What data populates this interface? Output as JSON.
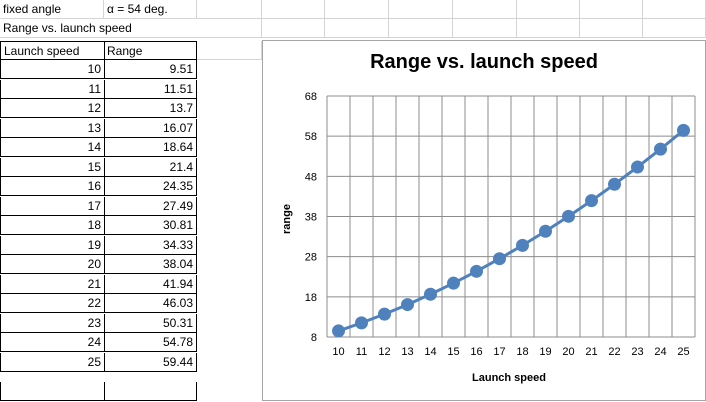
{
  "sheet": {
    "header_row1": {
      "label": "fixed angle",
      "angle": "α = 54 deg."
    },
    "header_row2": {
      "label": "Range vs. launch speed"
    },
    "table": {
      "columns": [
        "Launch speed",
        "Range"
      ],
      "rows": [
        [
          "10",
          "9.51"
        ],
        [
          "11",
          "11.51"
        ],
        [
          "12",
          "13.7"
        ],
        [
          "13",
          "16.07"
        ],
        [
          "14",
          "18.64"
        ],
        [
          "15",
          "21.4"
        ],
        [
          "16",
          "24.35"
        ],
        [
          "17",
          "27.49"
        ],
        [
          "18",
          "30.81"
        ],
        [
          "19",
          "34.33"
        ],
        [
          "20",
          "38.04"
        ],
        [
          "21",
          "41.94"
        ],
        [
          "22",
          "46.03"
        ],
        [
          "23",
          "50.31"
        ],
        [
          "24",
          "54.78"
        ],
        [
          "25",
          "59.44"
        ]
      ]
    }
  },
  "chart_data": {
    "type": "line",
    "title": "Range vs. launch speed",
    "xlabel": "Launch speed",
    "ylabel": "range",
    "x": [
      10,
      11,
      12,
      13,
      14,
      15,
      16,
      17,
      18,
      19,
      20,
      21,
      22,
      23,
      24,
      25
    ],
    "series": [
      {
        "values": [
          9.51,
          11.51,
          13.7,
          16.07,
          18.64,
          21.4,
          24.35,
          27.49,
          30.81,
          34.33,
          38.04,
          41.94,
          46.03,
          50.31,
          54.78,
          59.44
        ]
      }
    ],
    "ylim": [
      8,
      68
    ],
    "yticks": [
      8,
      18,
      28,
      38,
      48,
      58,
      68
    ],
    "grid": true,
    "color": "#4f81bd",
    "marker": "circle"
  }
}
